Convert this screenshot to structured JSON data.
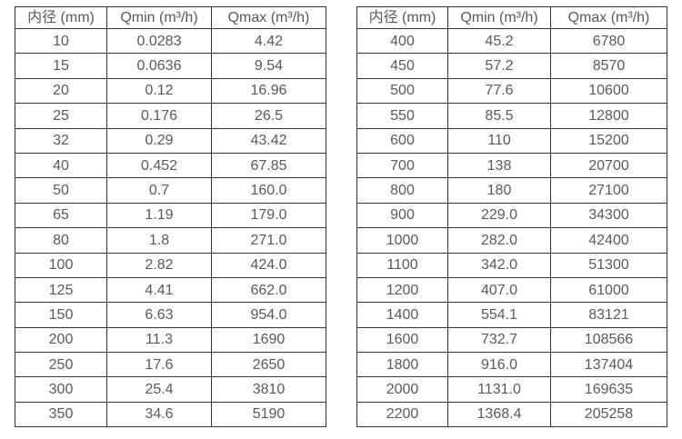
{
  "colors": {
    "background": "#ffffff",
    "border": "#333333",
    "text": "#595959"
  },
  "tables": [
    {
      "headers": [
        "内径 (mm)",
        "Qmin (m³/h)",
        "Qmax (m³/h)"
      ],
      "rows": [
        [
          "10",
          "0.0283",
          "4.42"
        ],
        [
          "15",
          "0.0636",
          "9.54"
        ],
        [
          "20",
          "0.12",
          "16.96"
        ],
        [
          "25",
          "0.176",
          "26.5"
        ],
        [
          "32",
          "0.29",
          "43.42"
        ],
        [
          "40",
          "0.452",
          "67.85"
        ],
        [
          "50",
          "0.7",
          "160.0"
        ],
        [
          "65",
          "1.19",
          "179.0"
        ],
        [
          "80",
          "1.8",
          "271.0"
        ],
        [
          "100",
          "2.82",
          "424.0"
        ],
        [
          "125",
          "4.41",
          "662.0"
        ],
        [
          "150",
          "6.63",
          "954.0"
        ],
        [
          "200",
          "11.3",
          "1690"
        ],
        [
          "250",
          "17.6",
          "2650"
        ],
        [
          "300",
          "25.4",
          "3810"
        ],
        [
          "350",
          "34.6",
          "5190"
        ]
      ]
    },
    {
      "headers": [
        "内径 (mm)",
        "Qmin (m³/h)",
        "Qmax (m³/h)"
      ],
      "rows": [
        [
          "400",
          "45.2",
          "6780"
        ],
        [
          "450",
          "57.2",
          "8570"
        ],
        [
          "500",
          "77.6",
          "10600"
        ],
        [
          "550",
          "85.5",
          "12800"
        ],
        [
          "600",
          "110",
          "15200"
        ],
        [
          "700",
          "138",
          "20700"
        ],
        [
          "800",
          "180",
          "27100"
        ],
        [
          "900",
          "229.0",
          "34300"
        ],
        [
          "1000",
          "282.0",
          "42400"
        ],
        [
          "1100",
          "342.0",
          "51300"
        ],
        [
          "1200",
          "407.0",
          "61000"
        ],
        [
          "1400",
          "554.1",
          "83121"
        ],
        [
          "1600",
          "732.7",
          "108566"
        ],
        [
          "1800",
          "916.0",
          "137404"
        ],
        [
          "2000",
          "1131.0",
          "169635"
        ],
        [
          "2200",
          "1368.4",
          "205258"
        ]
      ]
    }
  ]
}
